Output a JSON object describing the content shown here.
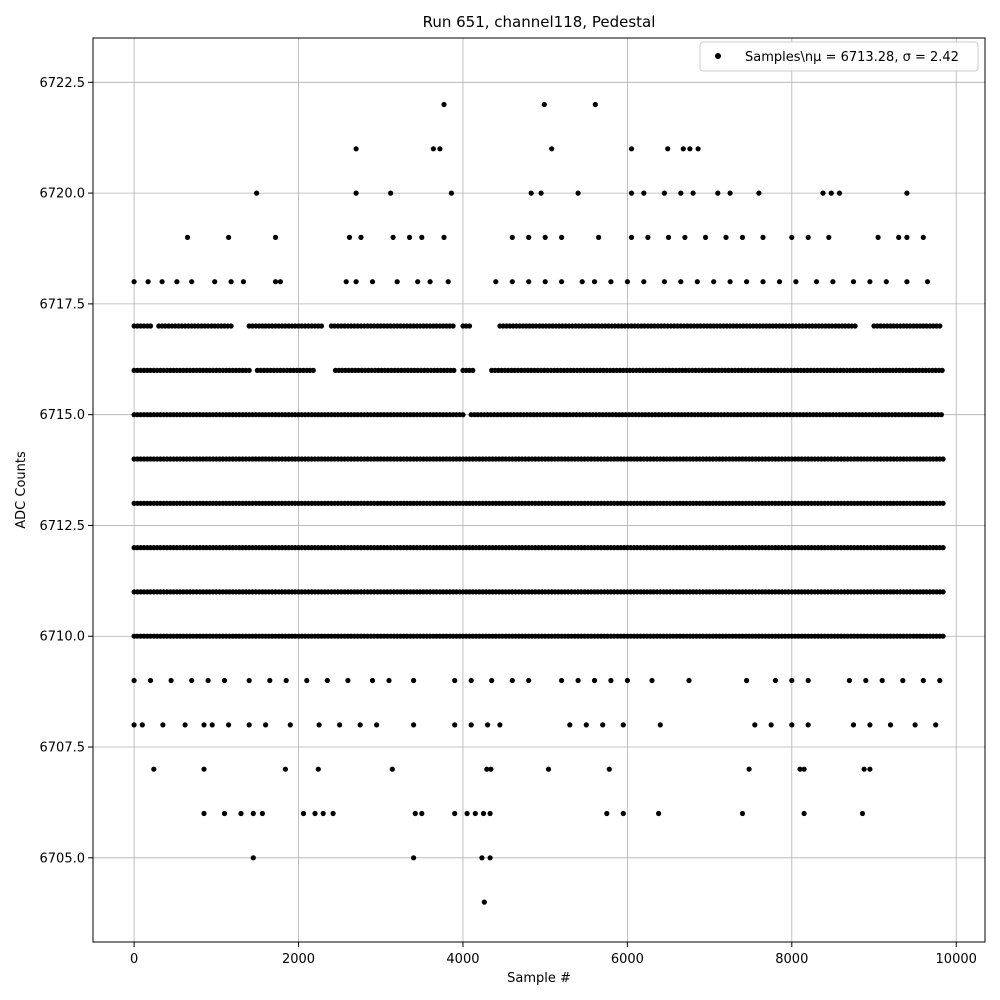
{
  "chart_data": {
    "type": "scatter",
    "title": "Run 651, channel118, Pedestal",
    "xlabel": "Sample #",
    "ylabel": "ADC Counts",
    "xlim": [
      -500,
      10350
    ],
    "ylim": [
      6703.1,
      6723.5
    ],
    "xticks": [
      0,
      2000,
      4000,
      6000,
      8000,
      10000
    ],
    "xtick_labels": [
      "0",
      "2000",
      "4000",
      "6000",
      "8000",
      "10000"
    ],
    "yticks": [
      6705.0,
      6707.5,
      6710.0,
      6712.5,
      6715.0,
      6717.5,
      6720.0,
      6722.5
    ],
    "ytick_labels": [
      "6705.0",
      "6707.5",
      "6710.0",
      "6712.5",
      "6715.0",
      "6717.5",
      "6720.0",
      "6722.5"
    ],
    "grid": true,
    "legend": {
      "placement": "upper-right",
      "text": "Samples\\nμ = 6713.28, σ = 2.42"
    },
    "series": [
      {
        "name": "Samples\\nμ = 6713.28, σ = 2.42",
        "color": "#000000",
        "points": [
          [
            0,
            6718
          ],
          [
            170,
            6718
          ],
          [
            340,
            6718
          ],
          [
            520,
            6718
          ],
          [
            700,
            6718
          ],
          [
            980,
            6718
          ],
          [
            1180,
            6718
          ],
          [
            1330,
            6718
          ],
          [
            1720,
            6718
          ],
          [
            1780,
            6718
          ],
          [
            2580,
            6718
          ],
          [
            2700,
            6718
          ],
          [
            2900,
            6718
          ],
          [
            3200,
            6718
          ],
          [
            3450,
            6718
          ],
          [
            3600,
            6718
          ],
          [
            3820,
            6718
          ],
          [
            4400,
            6718
          ],
          [
            4600,
            6718
          ],
          [
            4800,
            6718
          ],
          [
            5000,
            6718
          ],
          [
            5200,
            6718
          ],
          [
            5450,
            6718
          ],
          [
            5600,
            6718
          ],
          [
            5800,
            6718
          ],
          [
            6000,
            6718
          ],
          [
            6200,
            6718
          ],
          [
            6450,
            6718
          ],
          [
            6650,
            6718
          ],
          [
            6850,
            6718
          ],
          [
            7050,
            6718
          ],
          [
            7250,
            6718
          ],
          [
            7450,
            6718
          ],
          [
            7650,
            6718
          ],
          [
            7850,
            6718
          ],
          [
            8050,
            6718
          ],
          [
            8300,
            6718
          ],
          [
            8500,
            6718
          ],
          [
            8750,
            6718
          ],
          [
            8950,
            6718
          ],
          [
            9150,
            6718
          ],
          [
            9400,
            6718
          ],
          [
            9650,
            6718
          ],
          [
            650,
            6719
          ],
          [
            1150,
            6719
          ],
          [
            1720,
            6719
          ],
          [
            2620,
            6719
          ],
          [
            2760,
            6719
          ],
          [
            3150,
            6719
          ],
          [
            3350,
            6719
          ],
          [
            3500,
            6719
          ],
          [
            3770,
            6719
          ],
          [
            4600,
            6719
          ],
          [
            4800,
            6719
          ],
          [
            5000,
            6719
          ],
          [
            5200,
            6719
          ],
          [
            5650,
            6719
          ],
          [
            6050,
            6719
          ],
          [
            6250,
            6719
          ],
          [
            6500,
            6719
          ],
          [
            6700,
            6719
          ],
          [
            6950,
            6719
          ],
          [
            7200,
            6719
          ],
          [
            7400,
            6719
          ],
          [
            7650,
            6719
          ],
          [
            8000,
            6719
          ],
          [
            8200,
            6719
          ],
          [
            8450,
            6719
          ],
          [
            9050,
            6719
          ],
          [
            9300,
            6719
          ],
          [
            9400,
            6719
          ],
          [
            9600,
            6719
          ],
          [
            1490,
            6720
          ],
          [
            2700,
            6720
          ],
          [
            3120,
            6720
          ],
          [
            3860,
            6720
          ],
          [
            4830,
            6720
          ],
          [
            4950,
            6720
          ],
          [
            5400,
            6720
          ],
          [
            6050,
            6720
          ],
          [
            6200,
            6720
          ],
          [
            6450,
            6720
          ],
          [
            6650,
            6720
          ],
          [
            6800,
            6720
          ],
          [
            7100,
            6720
          ],
          [
            7250,
            6720
          ],
          [
            7600,
            6720
          ],
          [
            8380,
            6720
          ],
          [
            8480,
            6720
          ],
          [
            8580,
            6720
          ],
          [
            9400,
            6720
          ],
          [
            2700,
            6721
          ],
          [
            3640,
            6721
          ],
          [
            3720,
            6721
          ],
          [
            5080,
            6721
          ],
          [
            6050,
            6721
          ],
          [
            6490,
            6721
          ],
          [
            6680,
            6721
          ],
          [
            6760,
            6721
          ],
          [
            6860,
            6721
          ],
          [
            3770,
            6722
          ],
          [
            4990,
            6722
          ],
          [
            5610,
            6722
          ],
          [
            1450,
            6705
          ],
          [
            3400,
            6705
          ],
          [
            4230,
            6705
          ],
          [
            4330,
            6705
          ],
          [
            4260,
            6704
          ],
          [
            850,
            6706
          ],
          [
            1100,
            6706
          ],
          [
            1300,
            6706
          ],
          [
            1450,
            6706
          ],
          [
            1560,
            6706
          ],
          [
            2060,
            6706
          ],
          [
            2200,
            6706
          ],
          [
            2300,
            6706
          ],
          [
            2420,
            6706
          ],
          [
            3420,
            6706
          ],
          [
            3500,
            6706
          ],
          [
            3900,
            6706
          ],
          [
            4050,
            6706
          ],
          [
            4150,
            6706
          ],
          [
            4250,
            6706
          ],
          [
            4330,
            6706
          ],
          [
            5750,
            6706
          ],
          [
            5950,
            6706
          ],
          [
            6380,
            6706
          ],
          [
            7400,
            6706
          ],
          [
            8150,
            6706
          ],
          [
            8860,
            6706
          ],
          [
            240,
            6707
          ],
          [
            850,
            6707
          ],
          [
            1840,
            6707
          ],
          [
            2240,
            6707
          ],
          [
            3140,
            6707
          ],
          [
            4290,
            6707
          ],
          [
            4340,
            6707
          ],
          [
            5040,
            6707
          ],
          [
            5780,
            6707
          ],
          [
            7480,
            6707
          ],
          [
            8100,
            6707
          ],
          [
            8150,
            6707
          ],
          [
            8880,
            6707
          ],
          [
            8950,
            6707
          ],
          [
            0,
            6708
          ],
          [
            100,
            6708
          ],
          [
            350,
            6708
          ],
          [
            620,
            6708
          ],
          [
            850,
            6708
          ],
          [
            950,
            6708
          ],
          [
            1150,
            6708
          ],
          [
            1400,
            6708
          ],
          [
            1600,
            6708
          ],
          [
            1900,
            6708
          ],
          [
            2250,
            6708
          ],
          [
            2500,
            6708
          ],
          [
            2750,
            6708
          ],
          [
            2950,
            6708
          ],
          [
            3400,
            6708
          ],
          [
            3900,
            6708
          ],
          [
            4100,
            6708
          ],
          [
            4300,
            6708
          ],
          [
            4450,
            6708
          ],
          [
            5300,
            6708
          ],
          [
            5500,
            6708
          ],
          [
            5700,
            6708
          ],
          [
            5950,
            6708
          ],
          [
            6400,
            6708
          ],
          [
            7550,
            6708
          ],
          [
            7750,
            6708
          ],
          [
            8000,
            6708
          ],
          [
            8200,
            6708
          ],
          [
            8750,
            6708
          ],
          [
            8950,
            6708
          ],
          [
            9200,
            6708
          ],
          [
            9500,
            6708
          ],
          [
            9750,
            6708
          ],
          [
            0,
            6709
          ],
          [
            200,
            6709
          ],
          [
            450,
            6709
          ],
          [
            700,
            6709
          ],
          [
            900,
            6709
          ],
          [
            1100,
            6709
          ],
          [
            1400,
            6709
          ],
          [
            1650,
            6709
          ],
          [
            1850,
            6709
          ],
          [
            2100,
            6709
          ],
          [
            2350,
            6709
          ],
          [
            2600,
            6709
          ],
          [
            2900,
            6709
          ],
          [
            3100,
            6709
          ],
          [
            3400,
            6709
          ],
          [
            3900,
            6709
          ],
          [
            4100,
            6709
          ],
          [
            4350,
            6709
          ],
          [
            4600,
            6709
          ],
          [
            4800,
            6709
          ],
          [
            5200,
            6709
          ],
          [
            5400,
            6709
          ],
          [
            5600,
            6709
          ],
          [
            5800,
            6709
          ],
          [
            6000,
            6709
          ],
          [
            6300,
            6709
          ],
          [
            6750,
            6709
          ],
          [
            7450,
            6709
          ],
          [
            7800,
            6709
          ],
          [
            8000,
            6709
          ],
          [
            8200,
            6709
          ],
          [
            8700,
            6709
          ],
          [
            8900,
            6709
          ],
          [
            9100,
            6709
          ],
          [
            9350,
            6709
          ],
          [
            9600,
            6709
          ],
          [
            9800,
            6709
          ]
        ],
        "dense_levels": [
          {
            "y": 6717,
            "segments": [
              [
                0,
                200
              ],
              [
                300,
                1200
              ],
              [
                1400,
                2300
              ],
              [
                2400,
                3900
              ],
              [
                4000,
                4100
              ],
              [
                4450,
                8800
              ],
              [
                9000,
                9800
              ]
            ]
          },
          {
            "y": 6716,
            "segments": [
              [
                0,
                1400
              ],
              [
                1500,
                2200
              ],
              [
                2450,
                3900
              ],
              [
                4000,
                4150
              ],
              [
                4350,
                9850
              ]
            ]
          },
          {
            "y": 6715,
            "segments": [
              [
                0,
                4000
              ],
              [
                4100,
                9850
              ]
            ]
          },
          {
            "y": 6714,
            "segments": [
              [
                0,
                9850
              ]
            ]
          },
          {
            "y": 6713,
            "segments": [
              [
                0,
                9850
              ]
            ]
          },
          {
            "y": 6712,
            "segments": [
              [
                0,
                9850
              ]
            ]
          },
          {
            "y": 6711,
            "segments": [
              [
                0,
                9850
              ]
            ]
          },
          {
            "y": 6710,
            "segments": [
              [
                0,
                9850
              ]
            ]
          }
        ]
      }
    ]
  }
}
